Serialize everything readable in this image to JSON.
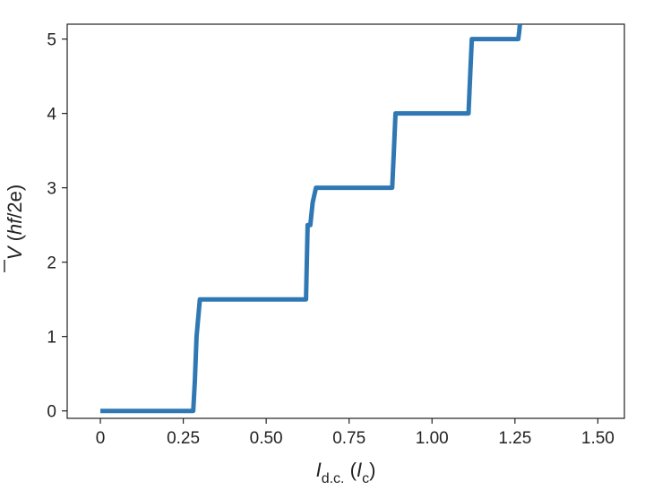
{
  "chart_data": {
    "type": "line",
    "title": "",
    "xlabel": {
      "symbol": "I",
      "subscript": "d.c.",
      "unit_open": " (",
      "unit_symbol": "I",
      "unit_subscript": "c",
      "unit_close": ")"
    },
    "ylabel": {
      "symbol": "V",
      "unit_open": " (",
      "unit_italic": "hf",
      "unit_rest": "/2e)"
    },
    "xlim": [
      -0.1,
      1.58
    ],
    "ylim": [
      -0.1,
      5.2
    ],
    "xticks": [
      0,
      0.25,
      0.5,
      0.75,
      1.0,
      1.25,
      1.5
    ],
    "xtick_labels": [
      "0",
      "0.25",
      "0.50",
      "0.75",
      "1.00",
      "1.25",
      "1.50"
    ],
    "yticks": [
      0,
      1,
      2,
      3,
      4,
      5
    ],
    "ytick_labels": [
      "0",
      "1",
      "2",
      "3",
      "4",
      "5"
    ],
    "grid": false,
    "legend": "none",
    "series": [
      {
        "color": "#2f78b4",
        "x": [
          0,
          0.28,
          0.285,
          0.29,
          0.3,
          0.62,
          0.625,
          0.627,
          0.63,
          0.633,
          0.64,
          0.65,
          0.88,
          0.885,
          0.89,
          1.11,
          1.115,
          1.12,
          1.26,
          1.263,
          1.265
        ],
        "y": [
          0,
          0,
          0.4,
          1.0,
          1.5,
          1.5,
          2.5,
          2.5,
          2.5,
          2.5,
          2.8,
          3.0,
          3.0,
          3.5,
          4.0,
          4.0,
          4.5,
          5.0,
          5.0,
          5.1,
          5.2
        ]
      }
    ]
  }
}
